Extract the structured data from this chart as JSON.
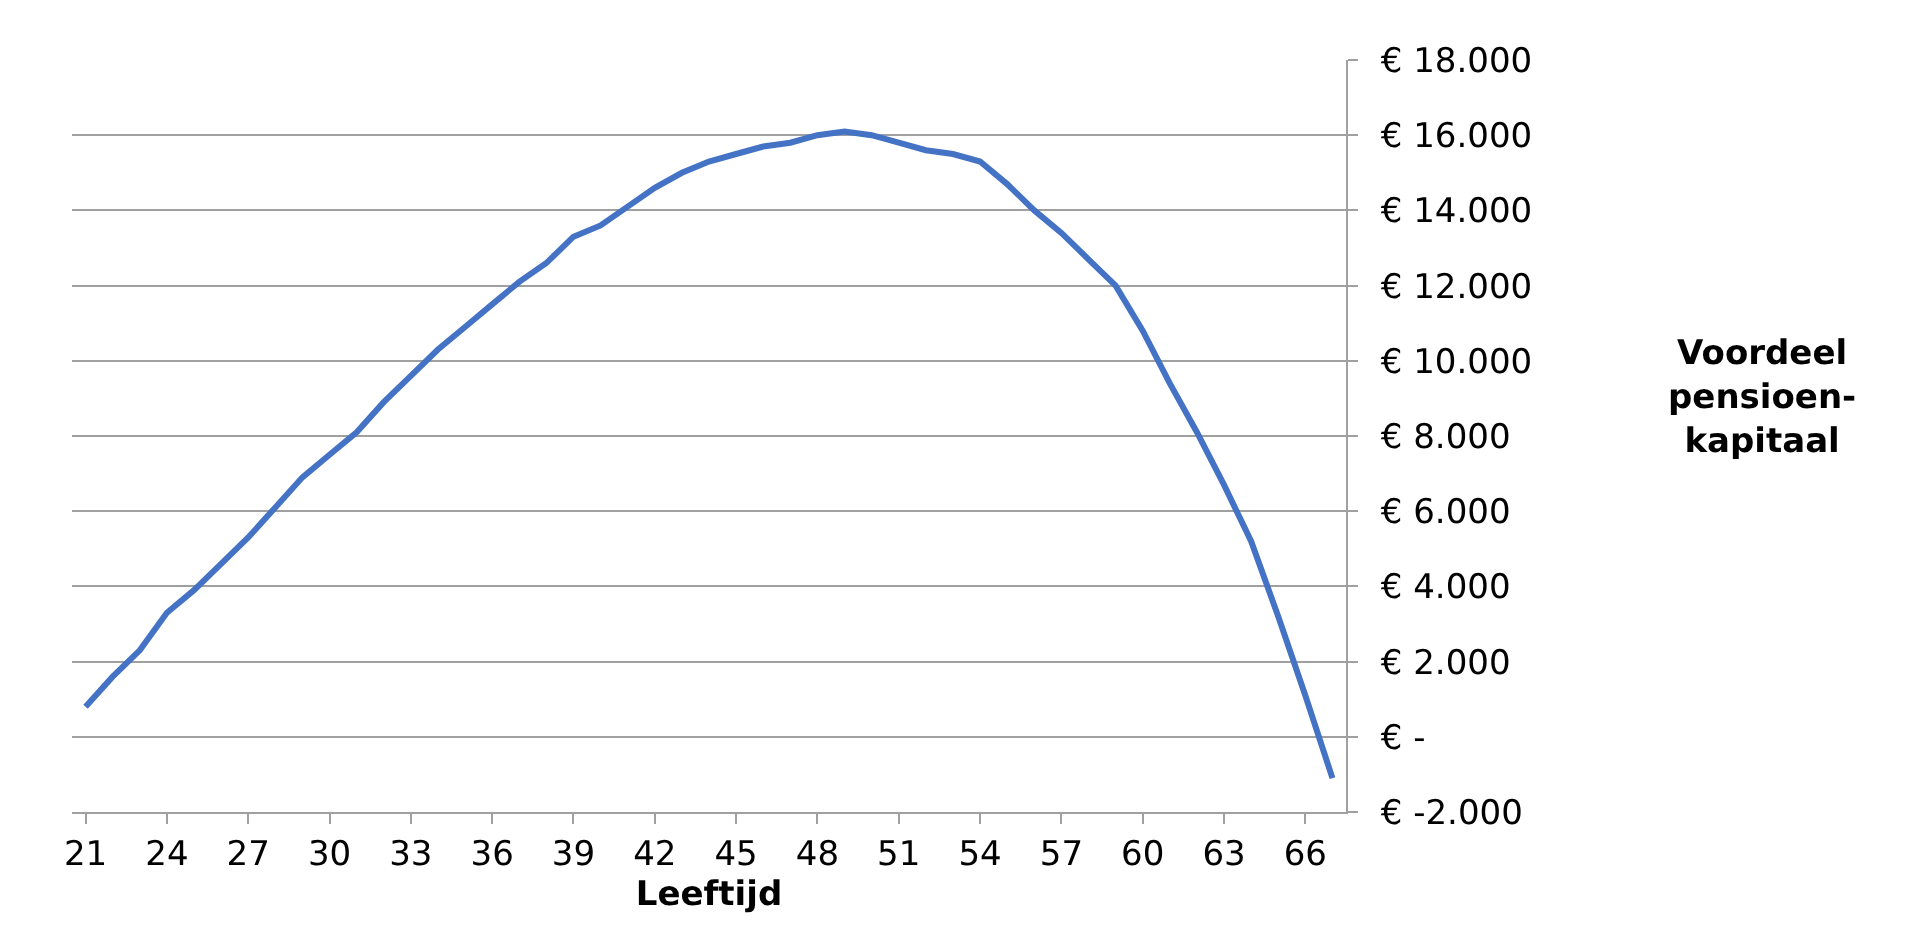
{
  "chart_data": {
    "type": "line",
    "xlabel": "Leeftijd",
    "ylabel": "Voordeel\npensioen-\nkapitaal",
    "categories": [
      "21",
      null,
      null,
      "24",
      null,
      null,
      "27",
      null,
      null,
      "30",
      null,
      null,
      "33",
      null,
      null,
      "36",
      null,
      null,
      "39",
      null,
      null,
      "42",
      null,
      null,
      "45",
      null,
      null,
      "48",
      null,
      null,
      "51",
      null,
      null,
      "54",
      null,
      null,
      "57",
      null,
      null,
      "60",
      null,
      null,
      "63",
      null,
      null,
      "66",
      null
    ],
    "series": [
      {
        "color": "#4472c4",
        "values": [
          800,
          1600,
          2300,
          3300,
          3900,
          4600,
          5300,
          6100,
          6900,
          7500,
          8100,
          8900,
          9600,
          10300,
          10900,
          11500,
          12100,
          12600,
          13300,
          13600,
          14100,
          14600,
          15000,
          15300,
          15500,
          15700,
          15800,
          16000,
          16100,
          16000,
          15800,
          15600,
          15500,
          15300,
          14700,
          14000,
          13400,
          12700,
          12000,
          10800,
          9400,
          8100,
          6700,
          5200,
          3200,
          1100,
          -1100
        ]
      }
    ],
    "ylim": [
      -2000,
      18000
    ],
    "yticks": [
      {
        "value": -2000,
        "label": "€ -2.000"
      },
      {
        "value": 0,
        "label": "€ -"
      },
      {
        "value": 2000,
        "label": "€ 2.000"
      },
      {
        "value": 4000,
        "label": "€ 4.000"
      },
      {
        "value": 6000,
        "label": "€ 6.000"
      },
      {
        "value": 8000,
        "label": "€ 8.000"
      },
      {
        "value": 10000,
        "label": "€ 10.000"
      },
      {
        "value": 12000,
        "label": "€ 12.000"
      },
      {
        "value": 14000,
        "label": "€ 14.000"
      },
      {
        "value": 16000,
        "label": "€ 16.000"
      },
      {
        "value": 18000,
        "label": "€ 18.000"
      }
    ],
    "grid": "y",
    "marker": "none",
    "line_style": "solid"
  }
}
